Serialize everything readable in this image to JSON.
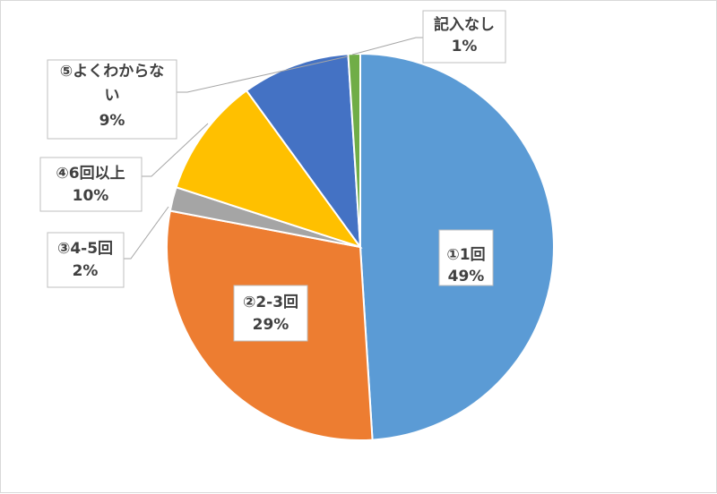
{
  "chart_data": {
    "type": "pie",
    "title": "",
    "slices": [
      {
        "name": "①1回",
        "value": 49,
        "label": "49%",
        "color": "#5B9BD5"
      },
      {
        "name": "②2-3回",
        "value": 29,
        "label": "29%",
        "color": "#ED7D31"
      },
      {
        "name": "③4-5回",
        "value": 2,
        "label": "2%",
        "color": "#A5A5A5"
      },
      {
        "name": "④6回以上",
        "value": 10,
        "label": "10%",
        "color": "#FFC000"
      },
      {
        "name": "⑤よくわからない",
        "value": 9,
        "label": "9%",
        "color": "#4472C4"
      },
      {
        "name": "記入なし",
        "value": 1,
        "label": "1%",
        "color": "#70AD47"
      }
    ],
    "legend": "none",
    "data_labels": "category-and-percent"
  }
}
